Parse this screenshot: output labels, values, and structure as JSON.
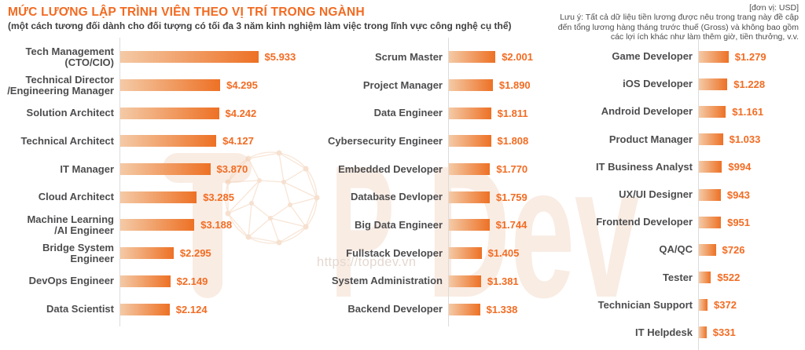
{
  "header": {
    "title": "MỨC LƯƠNG LẬP TRÌNH VIÊN THEO VỊ TRÍ TRONG NGÀNH",
    "subtitle": "(một cách tương đối dành cho đối tượng có tối đa 3 năm kinh nghiệm làm việc trong lĩnh vực công nghệ cụ thể)"
  },
  "note": {
    "unit": "[đơn vị: USD]",
    "lines": [
      "Lưu ý: Tất cả dữ liệu tiền lương được nêu trong trang này đề cập",
      "đến tổng lương hàng tháng trước thuế (Gross) và không bao gồm",
      "các lợi ích khác như làm thêm giờ, tiền thưởng, v.v."
    ]
  },
  "watermark": {
    "brand": "TopDev",
    "url": "https://topdev.vn"
  },
  "colors": {
    "accent": "#F26A21",
    "value_text": "#F26C23",
    "label_text": "#4D4D4F",
    "bar_gradient_start": "#F4CAA6",
    "bar_gradient_end": "#ED7125",
    "axis_line": "#DCDCDC"
  },
  "chart_data": {
    "type": "bar",
    "orientation": "horizontal",
    "value_unit": "USD",
    "columns": [
      {
        "items": [
          {
            "label": "Tech Management\n(CTO/CIO)",
            "value": 5933,
            "display": "$5.933"
          },
          {
            "label": "Technical Director\n/Engineering Manager",
            "value": 4295,
            "display": "$4.295"
          },
          {
            "label": "Solution Architect",
            "value": 4242,
            "display": "$4.242"
          },
          {
            "label": "Technical Architect",
            "value": 4127,
            "display": "$4.127"
          },
          {
            "label": "IT Manager",
            "value": 3870,
            "display": "$3.870"
          },
          {
            "label": "Cloud Architect",
            "value": 3285,
            "display": "$3.285"
          },
          {
            "label": "Machine Learning\n/AI Engineer",
            "value": 3188,
            "display": "$3.188"
          },
          {
            "label": "Bridge System Engineer",
            "value": 2295,
            "display": "$2.295"
          },
          {
            "label": "DevOps Engineer",
            "value": 2149,
            "display": "$2.149"
          },
          {
            "label": "Data Scientist",
            "value": 2124,
            "display": "$2.124"
          }
        ]
      },
      {
        "items": [
          {
            "label": "Scrum Master",
            "value": 2001,
            "display": "$2.001"
          },
          {
            "label": "Project Manager",
            "value": 1890,
            "display": "$1.890"
          },
          {
            "label": "Data Engineer",
            "value": 1811,
            "display": "$1.811"
          },
          {
            "label": "Cybersecurity Engineer",
            "value": 1808,
            "display": "$1.808"
          },
          {
            "label": "Embedded Developer",
            "value": 1770,
            "display": "$1.770"
          },
          {
            "label": "Database Devloper",
            "value": 1759,
            "display": "$1.759"
          },
          {
            "label": "Big Data Engineer",
            "value": 1744,
            "display": "$1.744"
          },
          {
            "label": "Fullstack Developer",
            "value": 1405,
            "display": "$1.405"
          },
          {
            "label": "System Administration",
            "value": 1381,
            "display": "$1.381"
          },
          {
            "label": "Backend Developer",
            "value": 1338,
            "display": "$1.338"
          }
        ]
      },
      {
        "items": [
          {
            "label": "Game Developer",
            "value": 1279,
            "display": "$1.279"
          },
          {
            "label": "iOS Developer",
            "value": 1228,
            "display": "$1.228"
          },
          {
            "label": "Android Developer",
            "value": 1161,
            "display": "$1.161"
          },
          {
            "label": "Product Manager",
            "value": 1033,
            "display": "$1.033"
          },
          {
            "label": "IT Business Analyst",
            "value": 994,
            "display": "$994"
          },
          {
            "label": "UX/UI Designer",
            "value": 943,
            "display": "$943"
          },
          {
            "label": "Frontend Developer",
            "value": 951,
            "display": "$951"
          },
          {
            "label": "QA/QC",
            "value": 726,
            "display": "$726"
          },
          {
            "label": "Tester",
            "value": 522,
            "display": "$522"
          },
          {
            "label": "Technician Support",
            "value": 372,
            "display": "$372"
          },
          {
            "label": "IT Helpdesk",
            "value": 331,
            "display": "$331"
          }
        ]
      }
    ]
  }
}
